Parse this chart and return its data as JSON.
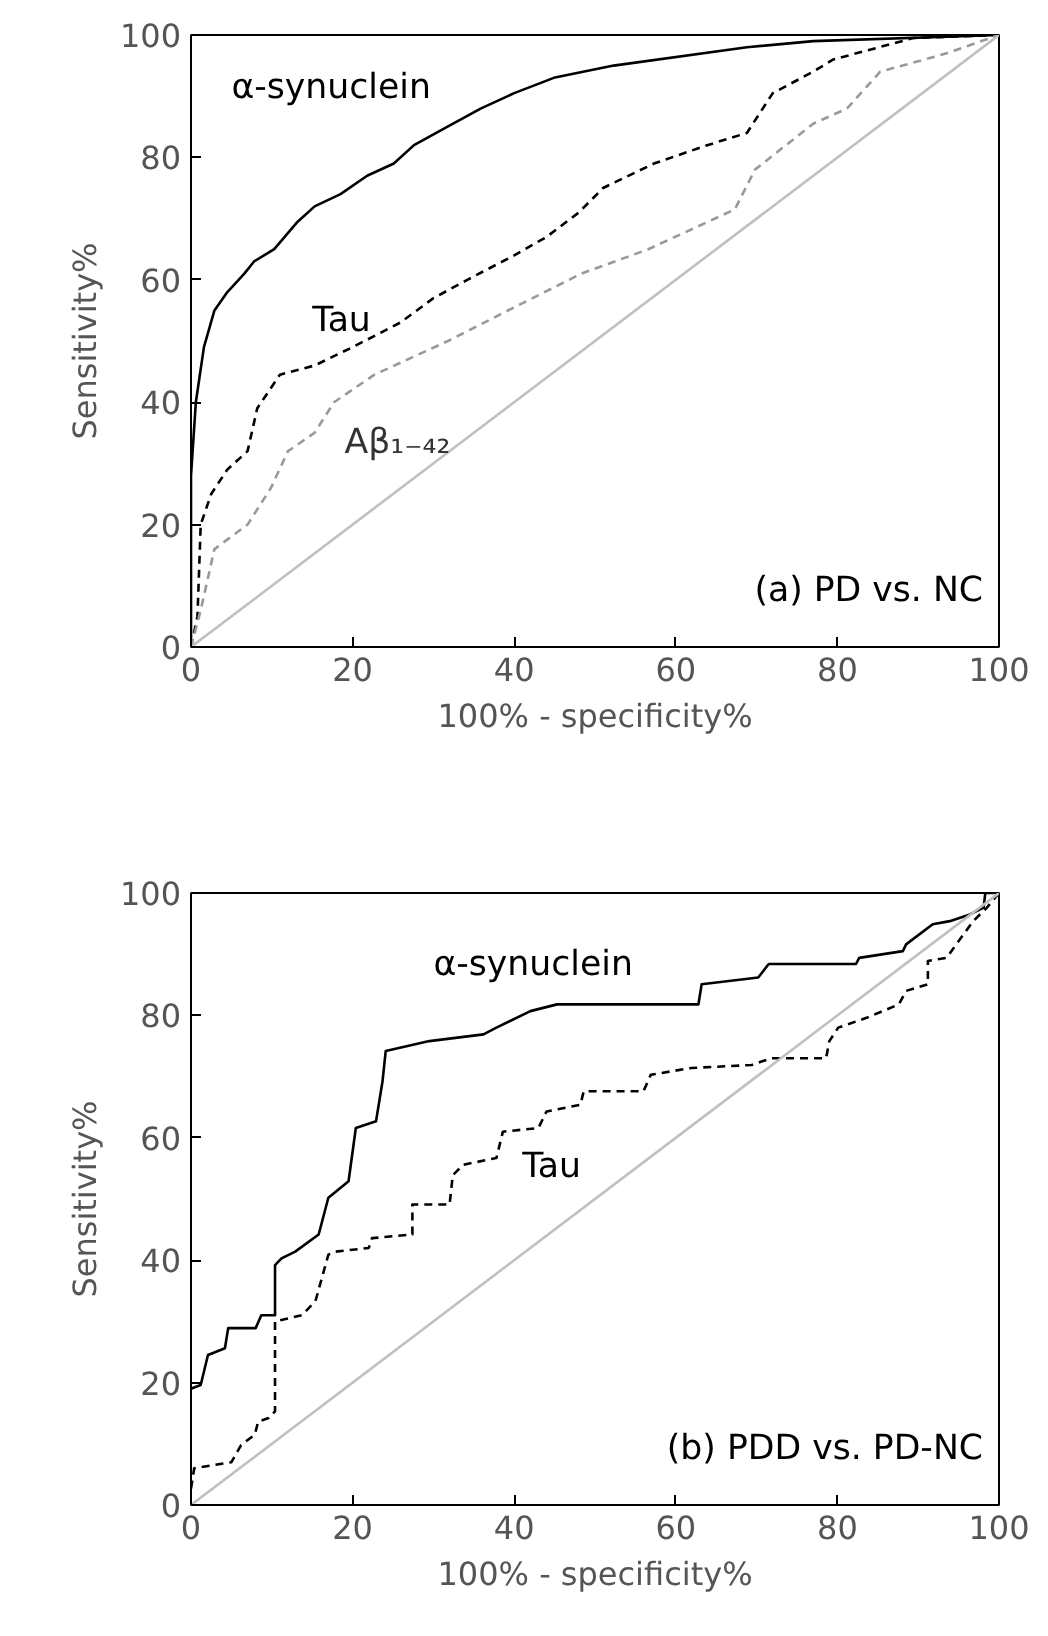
{
  "chart_data": [
    {
      "type": "line",
      "xlabel": "100% - specificity%",
      "ylabel": "Sensitivity%",
      "xlim": [
        0,
        100
      ],
      "ylim": [
        0,
        100
      ],
      "xticks": [
        0,
        20,
        40,
        60,
        80,
        100
      ],
      "yticks": [
        0,
        20,
        40,
        60,
        80,
        100
      ],
      "annotations": [
        "(a) PD vs. NC"
      ],
      "series": [
        {
          "name": "α-synuclein",
          "color": "#000000",
          "line_style": "solid",
          "x": [
            0,
            0,
            0.6,
            1.6,
            2.9,
            4.5,
            6.6,
            7.8,
            10.3,
            13.2,
            15.3,
            18.5,
            21.8,
            25.1,
            27.6,
            31.7,
            35.9,
            40,
            44.9,
            52.3,
            68.8,
            77,
            100
          ],
          "values": [
            0,
            28,
            40,
            49,
            55,
            58,
            61,
            63,
            65,
            69.5,
            72,
            74,
            77,
            79,
            82,
            85,
            88,
            90.5,
            93,
            95,
            98,
            99,
            100
          ]
        },
        {
          "name": "Tau",
          "color": "#000000",
          "line_style": "dashed",
          "x": [
            0,
            0.8,
            1.2,
            2.5,
            4.5,
            7,
            8.2,
            11,
            15.3,
            20,
            25.9,
            30,
            34.2,
            40,
            44,
            48,
            51,
            57.3,
            63.9,
            68.8,
            72,
            77,
            79.5,
            89.4,
            100
          ],
          "values": [
            0,
            5,
            20,
            25,
            29,
            32,
            39,
            44.5,
            46,
            49,
            53,
            57,
            60,
            64,
            67,
            71,
            75,
            79,
            82,
            84,
            90.5,
            94,
            96,
            99.5,
            100
          ]
        },
        {
          "name": "Aβ₁₋₄₂",
          "color": "#999999",
          "line_style": "dashed",
          "x": [
            0,
            1.2,
            2.9,
            7,
            9.9,
            12,
            15.3,
            17.7,
            22.7,
            31.8,
            40,
            48.3,
            56.6,
            67.3,
            69.8,
            77,
            81.2,
            85.3,
            93.5,
            100
          ],
          "values": [
            0,
            6,
            16,
            20,
            26,
            32,
            35,
            40,
            44.5,
            50,
            55.5,
            61,
            65,
            71.5,
            78,
            85.5,
            88,
            94,
            97,
            100
          ]
        },
        {
          "color": "#c0c0c0",
          "line_style": "solid",
          "x": [
            0,
            100
          ],
          "values": [
            0,
            100
          ]
        }
      ]
    },
    {
      "type": "line",
      "xlabel": "100% - specificity%",
      "ylabel": "Sensitivity%",
      "xlim": [
        0,
        100
      ],
      "ylim": [
        0,
        100
      ],
      "xticks": [
        0,
        20,
        40,
        60,
        80,
        100
      ],
      "yticks": [
        0,
        20,
        40,
        60,
        80,
        100
      ],
      "annotations": [
        "(b) PDD vs. PD-NC"
      ],
      "series": [
        {
          "name": "α-synuclein",
          "color": "#000000",
          "line_style": "solid",
          "x": [
            0,
            1.2,
            2.1,
            4.2,
            4.6,
            8,
            8.7,
            10.4,
            10.4,
            11.2,
            12.9,
            15.8,
            17,
            19.5,
            20.4,
            22.9,
            23.7,
            24.1,
            29.5,
            36.2,
            37.8,
            42,
            45.3,
            62.8,
            63.2,
            70.2,
            71.5,
            82.3,
            82.7,
            88.1,
            88.5,
            91.8,
            93.9,
            96.4,
            98.1,
            98.3,
            100
          ],
          "values": [
            19,
            19.6,
            24.5,
            25.6,
            28.9,
            28.9,
            31,
            31,
            39.2,
            40.3,
            41.4,
            44.2,
            50.2,
            52.9,
            61.6,
            62.7,
            69.2,
            74.2,
            75.8,
            76.9,
            78,
            80.7,
            81.8,
            81.8,
            85.1,
            86.2,
            88.4,
            88.4,
            89.4,
            90.5,
            91.6,
            94.9,
            95.4,
            96.5,
            97.6,
            100,
            100
          ]
        },
        {
          "name": "Tau",
          "color": "#000000",
          "line_style": "dashed",
          "x": [
            0,
            0.4,
            5,
            6.2,
            7.9,
            8.3,
            9.6,
            10.4,
            10.4,
            13.7,
            15.4,
            17,
            17.9,
            22,
            22.4,
            27.4,
            27.4,
            32,
            32.4,
            33.7,
            37.8,
            38.6,
            43,
            44,
            48.2,
            48.6,
            56,
            56.9,
            61.9,
            69.4,
            71.8,
            78.6,
            79,
            80.1,
            83.6,
            87.6,
            88.5,
            91.2,
            91.2,
            93.5,
            96.8,
            98.5,
            100
          ],
          "values": [
            2.7,
            6,
            7,
            9.8,
            11.5,
            13.6,
            14.2,
            15.3,
            30,
            31,
            33.3,
            40.9,
            41.4,
            42,
            43.6,
            44.2,
            49.1,
            49.1,
            53.9,
            55.6,
            56.7,
            61,
            61.6,
            64.3,
            65.4,
            67.6,
            67.6,
            70.3,
            71.4,
            71.9,
            73,
            73,
            75.8,
            78,
            79.6,
            81.8,
            84,
            85.1,
            88.9,
            89.4,
            95.4,
            97.6,
            100
          ]
        },
        {
          "color": "#c0c0c0",
          "line_style": "solid",
          "x": [
            0,
            100
          ],
          "values": [
            0,
            100
          ]
        }
      ]
    }
  ]
}
